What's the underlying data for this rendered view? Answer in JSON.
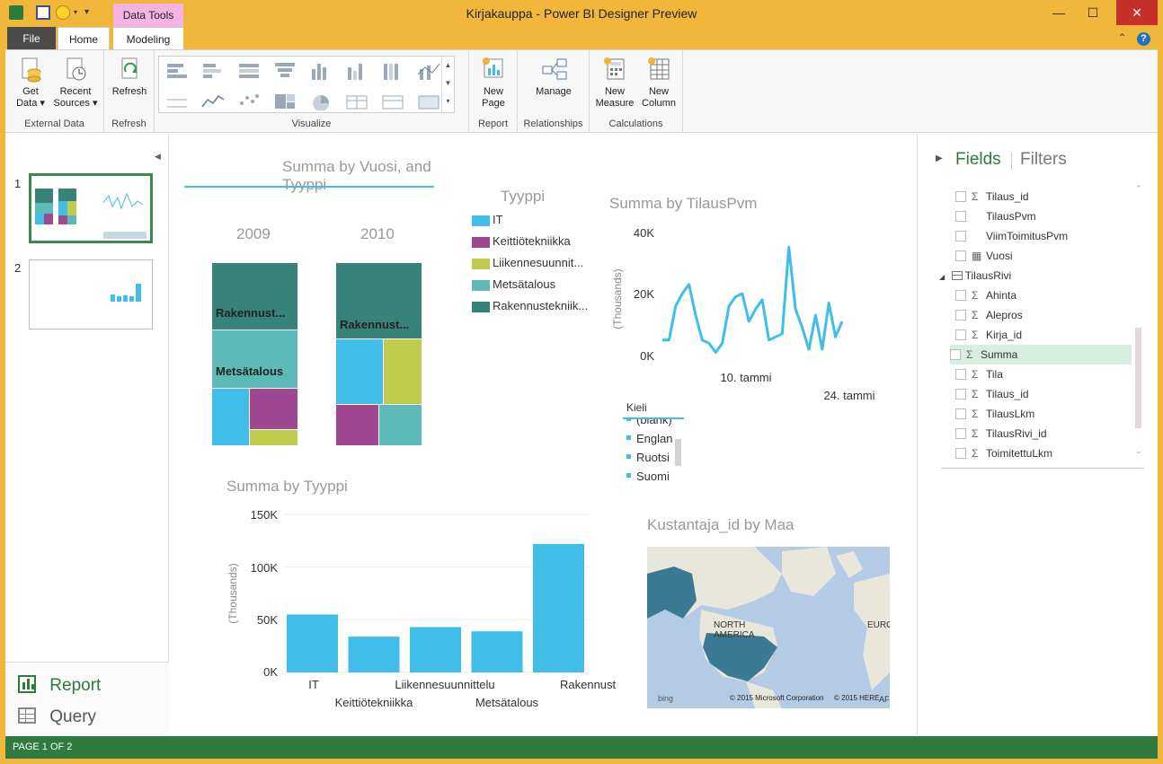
{
  "window": {
    "title": "Kirjakauppa - Power BI Designer Preview",
    "context_tab": "Data Tools",
    "minimize": "—",
    "maximize": "☐",
    "close": "✕"
  },
  "tabs": {
    "file": "File",
    "home": "Home",
    "modeling": "Modeling",
    "collapse": "⌃",
    "help": "?"
  },
  "ribbon": {
    "get_data": "Get Data ▾",
    "recent_sources": "Recent Sources ▾",
    "external_data": "External Data",
    "refresh_btn": "Refresh",
    "refresh_group": "Refresh",
    "visualize_group": "Visualize",
    "new_page": "New Page",
    "report_group": "Report",
    "manage": "Manage",
    "relationships_group": "Relationships",
    "new_measure": "New Measure",
    "new_column": "New Column",
    "calculations_group": "Calculations"
  },
  "pages": {
    "p1": "1",
    "p2": "2"
  },
  "views": {
    "report": "Report",
    "query": "Query"
  },
  "colors": {
    "IT": "#41bde9",
    "Keittiotekniikka": "#a04791",
    "Liikennesuunnittelu": "#bfcb4d",
    "Metsatalous": "#5dbab8",
    "Rakennustekniikka": "#37837a",
    "accent_green": "#2f7a3f",
    "line": "#41bde9"
  },
  "treemap": {
    "title": "Summa by Vuosi, and Tyyppi",
    "year1": "2009",
    "year2": "2010",
    "label_rak1": "Rakennust...",
    "label_met": "Metsätalous",
    "label_rak2": "Rakennust..."
  },
  "legend": {
    "title": "Tyyppi",
    "items": [
      "IT",
      "Keittiötekniikka",
      "Liikennesuunnit...",
      "Metsätalous",
      "Rakennustekniik..."
    ]
  },
  "line_chart": {
    "title": "Summa by TilausPvm",
    "y_label": "(Thousands)",
    "y_ticks": [
      "40K",
      "20K",
      "0K"
    ],
    "x_tick1": "10. tammi",
    "x_tick2": "24. tammi"
  },
  "slicer": {
    "title": "Kieli",
    "items": [
      "(blank)",
      "Englan",
      "Ruotsi",
      "Suomi"
    ]
  },
  "bar_chart": {
    "title": "Summa by Tyyppi",
    "y_label": "(Thousands)",
    "y_ticks": [
      "150K",
      "100K",
      "50K",
      "0K"
    ],
    "x_labels": [
      "IT",
      "Keittiötekniikka",
      "Liikennesuunnittelu",
      "Metsätalous",
      "Rakennusteknii"
    ]
  },
  "map": {
    "title": "Kustantaja_id by Maa",
    "label_na": "NORTH AMERICA",
    "label_eu": "EURO",
    "label_af": "AF",
    "bing": "bing",
    "copy1": "© 2015 Microsoft Corporation",
    "copy2": "© 2015 HERE"
  },
  "fields_panel": {
    "tab_fields": "Fields",
    "tab_filters": "Filters",
    "table_name": "TilausRivi",
    "rows_top": [
      {
        "name": "Tilaus_id",
        "sym": "Σ"
      },
      {
        "name": "TilausPvm",
        "sym": ""
      },
      {
        "name": "ViimToimitusPvm",
        "sym": ""
      },
      {
        "name": "Vuosi",
        "sym": "▦"
      }
    ],
    "rows_bottom": [
      {
        "name": "Ahinta",
        "sym": "Σ"
      },
      {
        "name": "Alepros",
        "sym": "Σ"
      },
      {
        "name": "Kirja_id",
        "sym": "Σ"
      },
      {
        "name": "Summa",
        "sym": "Σ"
      },
      {
        "name": "Tila",
        "sym": "Σ"
      },
      {
        "name": "Tilaus_id",
        "sym": "Σ"
      },
      {
        "name": "TilausLkm",
        "sym": "Σ"
      },
      {
        "name": "TilausRivi_id",
        "sym": "Σ"
      },
      {
        "name": "ToimitettuLkm",
        "sym": "Σ"
      }
    ]
  },
  "status": "PAGE 1 OF 2",
  "chart_data": [
    {
      "type": "bar",
      "title": "Summa by Tyyppi",
      "ylabel": "(Thousands)",
      "categories": [
        "IT",
        "Keittiötekniikka",
        "Liikennesuunnittelu",
        "Metsätalous",
        "Rakennusteknii"
      ],
      "values": [
        55,
        34,
        43,
        39,
        122
      ],
      "ylim": [
        0,
        150
      ]
    },
    {
      "type": "line",
      "title": "Summa by TilausPvm",
      "ylabel": "(Thousands)",
      "values": [
        5,
        5,
        16,
        20,
        23,
        13,
        5,
        4,
        1,
        4,
        16,
        19,
        20,
        11,
        15,
        18,
        5,
        6,
        7,
        35,
        15,
        9,
        2,
        13,
        2,
        17,
        6,
        11
      ],
      "ylim": [
        0,
        40
      ]
    }
  ]
}
